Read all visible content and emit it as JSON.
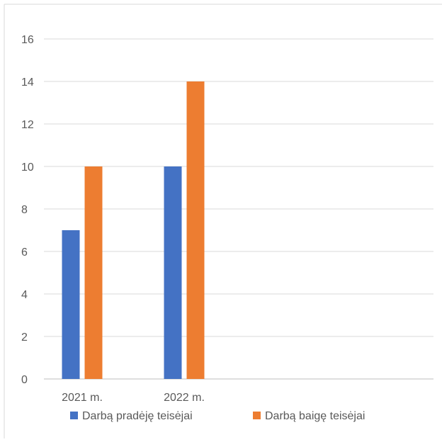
{
  "chart_data": {
    "type": "bar",
    "categories": [
      "2021 m.",
      "2022 m."
    ],
    "series": [
      {
        "name": "Darbą pradėję teisėjai",
        "values": [
          7,
          10
        ],
        "color": "#4472C4"
      },
      {
        "name": "Darbą baigę teisėjai",
        "values": [
          10,
          14
        ],
        "color": "#ED7D31"
      }
    ],
    "yticks": [
      "0",
      "2",
      "4",
      "6",
      "8",
      "10",
      "12",
      "14",
      "16"
    ],
    "ylim": [
      0,
      17
    ],
    "grid": true,
    "legend_position": "bottom",
    "title": "",
    "xlabel": "",
    "ylabel": ""
  }
}
